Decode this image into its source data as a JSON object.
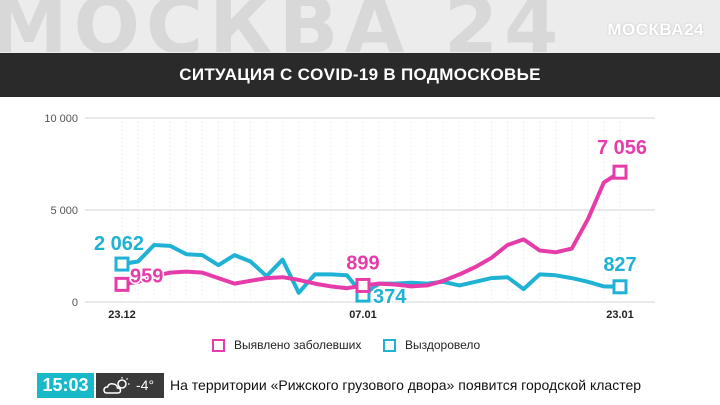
{
  "watermark": "МОСКВА 24",
  "logo": "МОСКВА24",
  "colors": {
    "pink": "#e53caa",
    "cyan": "#20b2d4"
  },
  "chart_data": {
    "type": "line",
    "title": "СИТУАЦИЯ С COVID-19 В ПОДМОСКОВЬЕ",
    "ylim": [
      0,
      10000
    ],
    "yticks": [
      0,
      5000,
      10000
    ],
    "ytick_labels": [
      "0",
      "5 000",
      "10 000"
    ],
    "x_tick_labels": [
      {
        "index": 0,
        "label": "23.12"
      },
      {
        "index": 15,
        "label": "07.01"
      },
      {
        "index": 31,
        "label": "23.01"
      }
    ],
    "grid": true,
    "legend_position": "bottom",
    "series": [
      {
        "name": "Выявлено заболевших",
        "color": "#e53caa",
        "values": [
          959,
          1100,
          1400,
          1600,
          1650,
          1600,
          1300,
          1000,
          1150,
          1300,
          1350,
          1200,
          1000,
          850,
          750,
          899,
          1000,
          950,
          850,
          900,
          1150,
          1500,
          1900,
          2400,
          3100,
          3400,
          2800,
          2700,
          2900,
          4500,
          6500,
          7056
        ],
        "labels": [
          {
            "index": 0,
            "text": "959"
          },
          {
            "index": 15,
            "text": "899"
          },
          {
            "index": 31,
            "text": "7 056"
          }
        ]
      },
      {
        "name": "Выздоровело",
        "color": "#20b2d4",
        "values": [
          2062,
          2200,
          3100,
          3050,
          2600,
          2550,
          2000,
          2550,
          2200,
          1400,
          2300,
          500,
          1500,
          1500,
          1450,
          374,
          1000,
          1000,
          1050,
          1000,
          1100,
          900,
          1100,
          1300,
          1350,
          700,
          1500,
          1450,
          1300,
          1100,
          850,
          827
        ],
        "labels": [
          {
            "index": 0,
            "text": "2 062"
          },
          {
            "index": 15,
            "text": "374"
          },
          {
            "index": 31,
            "text": "827"
          }
        ]
      }
    ]
  },
  "ticker": {
    "time": "15:03",
    "weather_icon": "cloud-sun-icon",
    "temperature": "-4°",
    "headline": "На территории «Рижского грузового двора» появится городской кластер"
  }
}
